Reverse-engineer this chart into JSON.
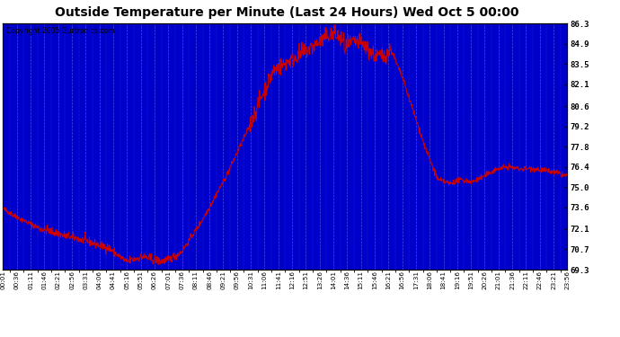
{
  "title": "Outside Temperature per Minute (Last 24 Hours) Wed Oct 5 00:00",
  "copyright": "Copyright 2005 Gurtronics.com",
  "yticks": [
    69.3,
    70.7,
    72.1,
    73.6,
    75.0,
    76.4,
    77.8,
    79.2,
    80.6,
    82.1,
    83.5,
    84.9,
    86.3
  ],
  "ymin": 69.3,
  "ymax": 86.3,
  "plot_bg_color": "#0000cc",
  "line_color": "#cc0000",
  "grid_color": "#3333ff",
  "num_points": 1440,
  "seed": 42,
  "xtick_labels": [
    "00:01",
    "00:36",
    "01:11",
    "01:46",
    "02:21",
    "02:56",
    "03:31",
    "04:06",
    "04:41",
    "05:16",
    "05:51",
    "06:26",
    "07:01",
    "07:36",
    "08:11",
    "08:46",
    "09:21",
    "09:56",
    "10:31",
    "11:06",
    "11:41",
    "12:16",
    "12:51",
    "13:26",
    "14:01",
    "14:36",
    "15:11",
    "15:46",
    "16:21",
    "16:56",
    "17:31",
    "18:06",
    "18:41",
    "19:16",
    "19:51",
    "20:26",
    "21:01",
    "21:36",
    "22:11",
    "22:46",
    "23:21",
    "23:56"
  ]
}
